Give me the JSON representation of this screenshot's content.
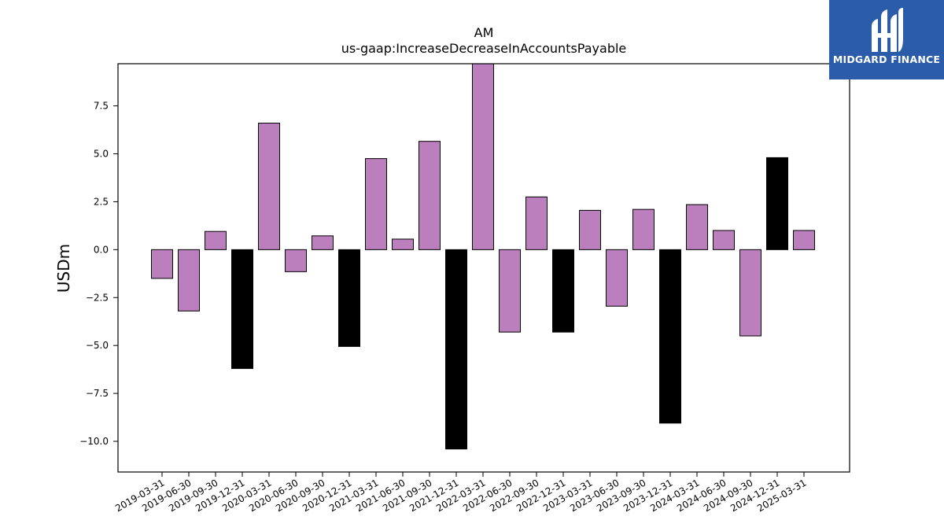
{
  "chart_data": {
    "type": "bar",
    "title": "AM",
    "subtitle": "us-gaap:IncreaseDecreaseInAccountsPayable",
    "xlabel": "",
    "ylabel": "USDm",
    "ylim": [
      -11.6,
      9.7
    ],
    "yticks": [
      -10.0,
      -7.5,
      -5.0,
      -2.5,
      0.0,
      2.5,
      5.0,
      7.5
    ],
    "ytick_labels": [
      "−10.0",
      "−7.5",
      "−5.0",
      "−2.5",
      "0.0",
      "2.5",
      "5.0",
      "7.5"
    ],
    "grid": false,
    "categories": [
      "2019-03-31",
      "2019-06-30",
      "2019-09-30",
      "2019-12-31",
      "2020-03-31",
      "2020-06-30",
      "2020-09-30",
      "2020-12-31",
      "2021-03-31",
      "2021-06-30",
      "2021-09-30",
      "2021-12-31",
      "2022-03-31",
      "2022-06-30",
      "2022-09-30",
      "2022-12-31",
      "2023-03-31",
      "2023-06-30",
      "2023-09-30",
      "2023-12-31",
      "2024-03-31",
      "2024-06-30",
      "2024-09-30",
      "2024-12-31",
      "2025-03-31"
    ],
    "values": [
      -1.5,
      -3.2,
      0.95,
      -6.2,
      6.6,
      -1.15,
      0.72,
      -5.05,
      4.75,
      0.55,
      5.65,
      -10.4,
      9.9,
      -4.3,
      2.75,
      -4.3,
      2.05,
      -2.95,
      2.1,
      -9.05,
      2.35,
      1.0,
      -4.5,
      4.8,
      1.0
    ],
    "bar_colors": [
      "#bb7fbd",
      "#bb7fbd",
      "#bb7fbd",
      "#000000",
      "#bb7fbd",
      "#bb7fbd",
      "#bb7fbd",
      "#000000",
      "#bb7fbd",
      "#bb7fbd",
      "#bb7fbd",
      "#000000",
      "#bb7fbd",
      "#bb7fbd",
      "#bb7fbd",
      "#000000",
      "#bb7fbd",
      "#bb7fbd",
      "#bb7fbd",
      "#000000",
      "#bb7fbd",
      "#bb7fbd",
      "#bb7fbd",
      "#000000",
      "#bb7fbd"
    ]
  },
  "logo": {
    "text": "MIDGARD FINANCE",
    "background": "#2a5caa",
    "icon": "midgard-logo-icon"
  }
}
